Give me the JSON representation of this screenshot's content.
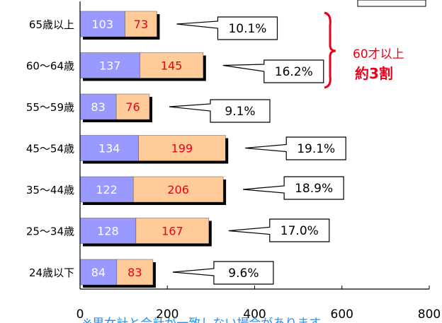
{
  "chart_data": {
    "type": "bar",
    "orientation": "horizontal",
    "stacked": true,
    "categories": [
      "65歳以上",
      "60〜64歳",
      "55〜59歳",
      "45〜54歳",
      "35〜44歳",
      "25〜34歳",
      "24歳以下"
    ],
    "series": [
      {
        "values": [
          103,
          137,
          83,
          134,
          122,
          128,
          84
        ]
      },
      {
        "values": [
          73,
          145,
          76,
          199,
          206,
          167,
          83
        ]
      }
    ],
    "percentages": [
      "10.1%",
      "16.2%",
      "9.1%",
      "19.1%",
      "18.9%",
      "17.0%",
      "9.6%"
    ],
    "xlim": [
      0,
      800
    ],
    "xticks": [
      "0",
      "200",
      "400",
      "600",
      "800"
    ],
    "title": "",
    "xlabel": "",
    "ylabel": "",
    "colors": {
      "series1": "#9999ff",
      "series2": "#ffcc99",
      "series1_text": "#ffffff",
      "series2_text": "#e8001c",
      "accent": "#e8001c",
      "footnote": "#2b8fe8"
    },
    "annotation": {
      "line1": "60才以上",
      "line2": "約3割"
    },
    "footnote": "※男女計と合計が一致しない場合があります"
  }
}
